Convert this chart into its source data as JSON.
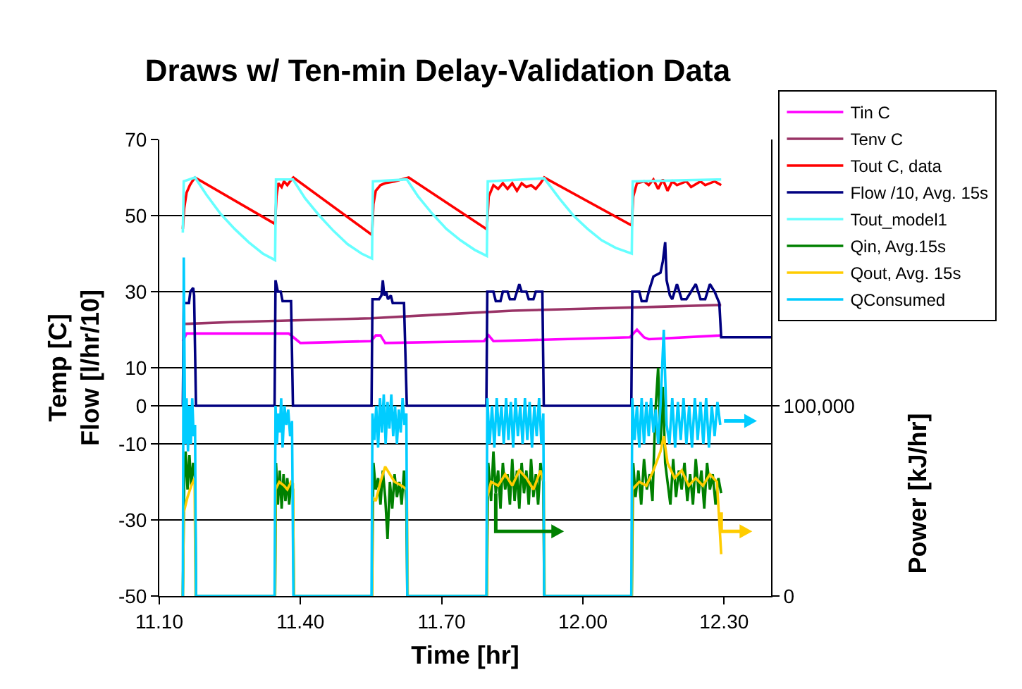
{
  "chart_data": {
    "type": "line",
    "title": "Draws w/ Ten-min Delay-Validation Data",
    "xlabel": "Time [hr]",
    "ylabel": "Temp [C]\nFlow [l/hr/10]",
    "y2label": "Power [kJ/hr]",
    "xlim": [
      11.1,
      12.4
    ],
    "xticks": [
      {
        "value": 11.1,
        "label": "11.10"
      },
      {
        "value": 11.4,
        "label": "11.40"
      },
      {
        "value": 11.7,
        "label": "11.70"
      },
      {
        "value": 12.0,
        "label": "12.00"
      },
      {
        "value": 12.3,
        "label": "12.30"
      }
    ],
    "ylim": [
      -50,
      70
    ],
    "yticks": [
      -50,
      -30,
      -10,
      0,
      10,
      30,
      50,
      70
    ],
    "y2lim": [
      0,
      240000
    ],
    "y2ticks": [
      0,
      {
        "value": 100000,
        "label": "100,000"
      }
    ],
    "grid": "y",
    "legend": "top right",
    "series": [
      {
        "name": "Tin C",
        "color": "#ff00ff",
        "x": [
          11.15,
          11.158,
          11.375,
          11.39,
          11.4,
          11.55,
          11.56,
          11.57,
          11.58,
          11.79,
          11.8,
          11.81,
          12.1,
          12.115,
          12.13,
          12.14,
          12.294
        ],
        "values": [
          17,
          19,
          19,
          17.5,
          16.5,
          17,
          18.5,
          18.5,
          16.5,
          17,
          18.5,
          17,
          18,
          20,
          18,
          17.5,
          18.5
        ]
      },
      {
        "name": "Tenv C",
        "color": "#993366",
        "x": [
          11.15,
          11.25,
          11.4,
          11.55,
          11.7,
          11.85,
          12.0,
          12.15,
          12.294
        ],
        "values": [
          21.5,
          22,
          22.5,
          23,
          24,
          25,
          25.5,
          26,
          26.5
        ]
      },
      {
        "name": "Tout C, data",
        "color": "#ff0000",
        "x": [
          11.15,
          11.153,
          11.158,
          11.165,
          11.17,
          11.176,
          11.346,
          11.349,
          11.353,
          11.36,
          11.365,
          11.372,
          11.378,
          11.385,
          11.552,
          11.555,
          11.56,
          11.57,
          11.58,
          11.6,
          11.63,
          11.796,
          11.8,
          11.81,
          11.82,
          11.83,
          11.84,
          11.85,
          11.86,
          11.87,
          11.88,
          11.89,
          11.9,
          11.91,
          11.918,
          12.104,
          12.107,
          12.115,
          12.13,
          12.14,
          12.15,
          12.16,
          12.17,
          12.18,
          12.19,
          12.2,
          12.22,
          12.23,
          12.25,
          12.26,
          12.28,
          12.294
        ],
        "values": [
          46.5,
          52,
          56,
          58,
          59,
          60,
          47.8,
          55,
          58.5,
          57.5,
          59,
          58,
          59,
          60,
          44.9,
          53,
          56.5,
          58,
          58.5,
          59,
          60,
          46.4,
          55,
          58,
          57,
          58.5,
          57,
          58.5,
          56.5,
          58.5,
          57.5,
          58,
          57,
          58.5,
          60,
          47.4,
          55,
          58.5,
          59,
          58,
          59.5,
          57,
          59.5,
          56.5,
          59,
          58,
          59,
          57.5,
          59,
          58,
          59,
          58
        ]
      },
      {
        "name": "Flow /10, Avg. 15s",
        "color": "#000080",
        "x": [
          11.15,
          11.152,
          11.163,
          11.166,
          11.172,
          11.174,
          11.178,
          11.345,
          11.347,
          11.352,
          11.358,
          11.362,
          11.38,
          11.384,
          11.551,
          11.553,
          11.567,
          11.572,
          11.575,
          11.578,
          11.582,
          11.586,
          11.592,
          11.596,
          11.62,
          11.626,
          11.795,
          11.797,
          11.81,
          11.815,
          11.825,
          11.83,
          11.84,
          11.845,
          11.855,
          11.86,
          11.865,
          11.87,
          11.88,
          11.885,
          11.895,
          11.9,
          11.914,
          11.917,
          12.103,
          12.105,
          12.12,
          12.125,
          12.135,
          12.14,
          12.15,
          12.165,
          12.17,
          12.175,
          12.178,
          12.185,
          12.19,
          12.2,
          12.21,
          12.22,
          12.23,
          12.24,
          12.25,
          12.26,
          12.27,
          12.28,
          12.29,
          12.294,
          12.4
        ],
        "values": [
          0,
          27,
          27,
          30,
          31,
          29,
          0,
          0,
          33,
          30,
          30,
          27.5,
          27.5,
          0,
          0,
          28,
          28,
          29,
          33,
          29,
          30,
          28,
          29,
          27,
          27,
          0,
          0,
          30,
          30,
          27.5,
          27.5,
          30,
          30,
          28,
          28,
          30,
          32,
          30,
          30,
          28,
          28,
          30,
          30,
          0,
          0,
          30,
          30,
          27.5,
          27.5,
          30,
          34,
          35,
          38,
          43,
          33,
          29,
          28,
          32,
          28,
          28,
          30,
          32,
          28,
          28,
          32,
          30,
          27,
          18,
          18
        ]
      },
      {
        "name": "Tout_model1",
        "color": "#66ffff",
        "x": [
          11.15,
          11.152,
          11.176,
          11.2,
          11.23,
          11.26,
          11.29,
          11.32,
          11.346,
          11.348,
          11.384,
          11.41,
          11.44,
          11.47,
          11.5,
          11.53,
          11.552,
          11.554,
          11.626,
          11.65,
          11.68,
          11.71,
          11.74,
          11.77,
          11.796,
          11.798,
          11.918,
          11.95,
          11.98,
          12.01,
          12.04,
          12.07,
          12.104,
          12.106,
          12.294
        ],
        "values": [
          45.5,
          59,
          60,
          55.5,
          50.5,
          46.5,
          43,
          40,
          38.3,
          59.5,
          59.5,
          54.5,
          50,
          46,
          42.5,
          40,
          38.7,
          59,
          59.5,
          55,
          50.5,
          46.5,
          43.5,
          41,
          39.4,
          59,
          59.8,
          54.5,
          50,
          46.5,
          43.5,
          41.5,
          40,
          59,
          59.5
        ]
      },
      {
        "name": "Qin, Avg.15s",
        "color": "#008000",
        "axis": "y2",
        "x": [
          11.15,
          11.153,
          11.156,
          11.16,
          11.164,
          11.168,
          11.172,
          11.176,
          11.178,
          11.346,
          11.348,
          11.352,
          11.356,
          11.36,
          11.364,
          11.368,
          11.372,
          11.376,
          11.38,
          11.384,
          11.386,
          11.552,
          11.555,
          11.56,
          11.565,
          11.57,
          11.575,
          11.58,
          11.585,
          11.59,
          11.595,
          11.6,
          11.605,
          11.61,
          11.615,
          11.62,
          11.625,
          11.627,
          11.796,
          11.799,
          11.805,
          11.81,
          11.815,
          11.82,
          11.825,
          11.83,
          11.835,
          11.84,
          11.845,
          11.85,
          11.855,
          11.86,
          11.865,
          11.87,
          11.875,
          11.88,
          11.885,
          11.89,
          11.895,
          11.9,
          11.905,
          11.91,
          11.916,
          11.918,
          12.104,
          12.107,
          12.112,
          12.118,
          12.124,
          12.13,
          12.136,
          12.142,
          12.148,
          12.154,
          12.16,
          12.165,
          12.17,
          12.175,
          12.18,
          12.186,
          12.192,
          12.198,
          12.204,
          12.21,
          12.216,
          12.222,
          12.228,
          12.234,
          12.24,
          12.246,
          12.252,
          12.258,
          12.264,
          12.27,
          12.276,
          12.282,
          12.288,
          12.294
        ],
        "values": [
          0,
          62000,
          76000,
          56000,
          74000,
          58000,
          70000,
          62000,
          0,
          0,
          70000,
          48000,
          66000,
          46000,
          64000,
          50000,
          62000,
          48000,
          60000,
          56000,
          0,
          0,
          70000,
          56000,
          62000,
          48000,
          66000,
          52000,
          30000,
          60000,
          46000,
          64000,
          52000,
          60000,
          48000,
          66000,
          50000,
          0,
          0,
          70000,
          50000,
          76000,
          54000,
          66000,
          46000,
          70000,
          56000,
          64000,
          48000,
          72000,
          50000,
          66000,
          46000,
          70000,
          54000,
          66000,
          48000,
          72000,
          52000,
          64000,
          48000,
          70000,
          60000,
          0,
          0,
          70000,
          52000,
          66000,
          48000,
          72000,
          56000,
          64000,
          50000,
          96000,
          120000,
          80000,
          110000,
          70000,
          60000,
          48000,
          72000,
          52000,
          66000,
          56000,
          70000,
          50000,
          64000,
          48000,
          72000,
          54000,
          66000,
          46000,
          70000,
          56000,
          64000,
          48000,
          62000,
          54000
        ]
      },
      {
        "name": "Qout, Avg. 15s",
        "color": "#ffcc00",
        "axis": "y2",
        "x": [
          11.15,
          11.152,
          11.16,
          11.168,
          11.175,
          11.177,
          11.346,
          11.347,
          11.355,
          11.365,
          11.372,
          11.38,
          11.384,
          11.386,
          11.552,
          11.553,
          11.56,
          11.57,
          11.58,
          11.59,
          11.6,
          11.615,
          11.626,
          11.628,
          11.796,
          11.797,
          11.805,
          11.82,
          11.835,
          11.85,
          11.865,
          11.88,
          11.895,
          11.91,
          11.917,
          11.919,
          12.104,
          12.105,
          12.12,
          12.135,
          12.15,
          12.165,
          12.172,
          12.18,
          12.195,
          12.21,
          12.225,
          12.24,
          12.255,
          12.27,
          12.285,
          12.294
        ],
        "values": [
          0,
          44000,
          52000,
          58000,
          62000,
          0,
          0,
          56000,
          60000,
          58000,
          56000,
          60000,
          59000,
          0,
          0,
          52000,
          50000,
          60000,
          68000,
          64000,
          60000,
          58000,
          56000,
          0,
          0,
          52000,
          60000,
          58000,
          64000,
          58000,
          66000,
          62000,
          56000,
          66000,
          60000,
          0,
          0,
          56000,
          60000,
          58000,
          66000,
          76000,
          84000,
          70000,
          62000,
          66000,
          58000,
          62000,
          58000,
          64000,
          60000,
          22000
        ]
      },
      {
        "name": "QConsumed",
        "color": "#00ccff",
        "axis": "y2",
        "x": [
          11.15,
          11.152,
          11.155,
          11.158,
          11.161,
          11.164,
          11.167,
          11.17,
          11.173,
          11.176,
          11.178,
          11.345,
          11.347,
          11.35,
          11.353,
          11.356,
          11.359,
          11.362,
          11.366,
          11.37,
          11.374,
          11.378,
          11.382,
          11.385,
          11.551,
          11.553,
          11.557,
          11.561,
          11.565,
          11.569,
          11.573,
          11.577,
          11.581,
          11.585,
          11.589,
          11.593,
          11.597,
          11.601,
          11.605,
          11.609,
          11.613,
          11.617,
          11.621,
          11.625,
          11.627,
          11.795,
          11.797,
          11.802,
          11.807,
          11.812,
          11.817,
          11.822,
          11.827,
          11.832,
          11.837,
          11.842,
          11.847,
          11.852,
          11.857,
          11.862,
          11.867,
          11.872,
          11.877,
          11.882,
          11.887,
          11.892,
          11.897,
          11.902,
          11.907,
          11.912,
          11.916,
          11.918,
          12.103,
          12.105,
          12.11,
          12.115,
          12.12,
          12.125,
          12.13,
          12.135,
          12.14,
          12.145,
          12.15,
          12.155,
          12.16,
          12.165,
          12.172,
          12.178,
          12.184,
          12.19,
          12.196,
          12.202,
          12.208,
          12.214,
          12.22,
          12.226,
          12.232,
          12.238,
          12.244,
          12.25,
          12.256,
          12.262,
          12.268,
          12.274,
          12.28,
          12.286,
          12.292
        ],
        "values": [
          0,
          178000,
          80000,
          104000,
          76000,
          100000,
          80000,
          104000,
          84000,
          90000,
          0,
          0,
          100000,
          80000,
          96000,
          86000,
          104000,
          78000,
          100000,
          90000,
          98000,
          84000,
          92000,
          0,
          0,
          96000,
          82000,
          100000,
          78000,
          104000,
          86000,
          106000,
          80000,
          102000,
          88000,
          106000,
          84000,
          100000,
          80000,
          98000,
          86000,
          104000,
          90000,
          96000,
          0,
          0,
          104000,
          80000,
          100000,
          78000,
          104000,
          84000,
          100000,
          80000,
          104000,
          82000,
          102000,
          78000,
          104000,
          84000,
          100000,
          80000,
          104000,
          82000,
          102000,
          78000,
          100000,
          84000,
          104000,
          80000,
          96000,
          0,
          0,
          104000,
          82000,
          100000,
          78000,
          104000,
          80000,
          102000,
          84000,
          104000,
          86000,
          98000,
          80000,
          100000,
          140000,
          90000,
          80000,
          104000,
          78000,
          102000,
          82000,
          104000,
          80000,
          100000,
          78000,
          104000,
          82000,
          102000,
          80000,
          104000,
          78000,
          100000,
          84000,
          102000,
          90000
        ]
      }
    ]
  }
}
